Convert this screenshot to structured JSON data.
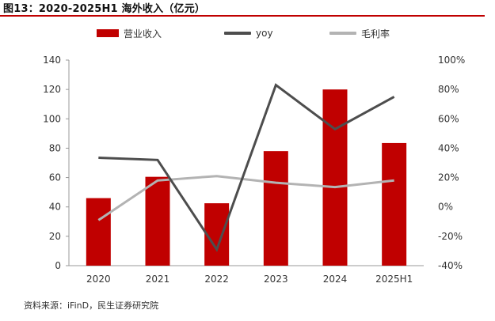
{
  "header": {
    "title": "图13：2020-2025H1 海外收入（亿元）"
  },
  "legend": {
    "bar_label": "营业收入",
    "yoy_label": "yoy",
    "margin_label": "毛利率"
  },
  "footer": {
    "source": "资料来源：iFinD，民生证券研究院"
  },
  "colors": {
    "bar": "#c00000",
    "yoy_line": "#4d4d4d",
    "margin_line": "#b3b3b3",
    "axis": "#999999",
    "title_rule": "#c00000"
  },
  "chart_data": {
    "type": "bar",
    "title": "图13：2020-2025H1 海外收入（亿元）",
    "categories": [
      "2020",
      "2021",
      "2022",
      "2023",
      "2024",
      "2025H1"
    ],
    "series": [
      {
        "name": "营业收入",
        "type": "bar",
        "axis": "left",
        "values": [
          46,
          60.5,
          42.5,
          78,
          120,
          83.5
        ]
      },
      {
        "name": "yoy",
        "type": "line",
        "axis": "right",
        "values": [
          33.5,
          32,
          -29,
          83,
          53,
          75
        ]
      },
      {
        "name": "毛利率",
        "type": "line",
        "axis": "right",
        "values": [
          -9,
          18,
          21,
          16.5,
          13.5,
          18
        ]
      }
    ],
    "left_axis": {
      "ylim": [
        0,
        140
      ],
      "ticks": [
        0,
        20,
        40,
        60,
        80,
        100,
        120,
        140
      ]
    },
    "right_axis": {
      "ylim": [
        -40,
        100
      ],
      "ticks": [
        -40,
        -20,
        0,
        20,
        40,
        60,
        80,
        100
      ],
      "tick_labels": [
        "-40%",
        "-20%",
        "0%",
        "20%",
        "40%",
        "60%",
        "80%",
        "100%"
      ]
    },
    "legend_position": "top",
    "grid": false
  }
}
